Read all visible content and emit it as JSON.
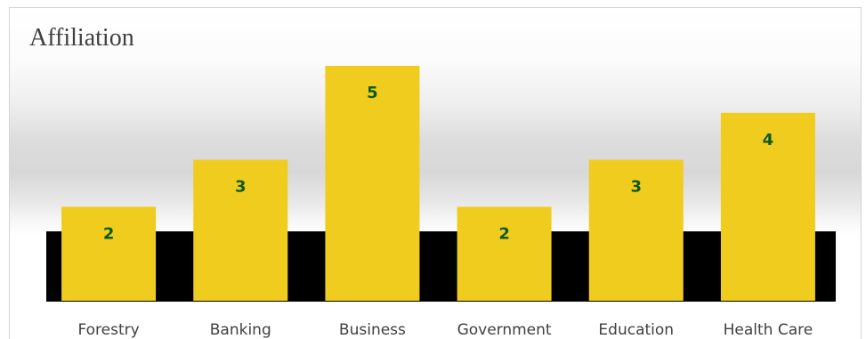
{
  "chart_data": {
    "type": "bar",
    "title": "Affiliation",
    "categories": [
      "Forestry",
      "Banking",
      "Business",
      "Government",
      "Education",
      "Health Care"
    ],
    "values": [
      2,
      3,
      5,
      2,
      3,
      4
    ],
    "xlabel": "",
    "ylabel": "",
    "ylim": [
      0,
      5
    ],
    "grid": false,
    "legend": "none",
    "data_labels": true,
    "colors": {
      "bar": "#f0cc1e",
      "data_label": "#0f5a1a",
      "floor_band": "#000000",
      "title": "#404040",
      "tick_label": "#404040"
    }
  }
}
